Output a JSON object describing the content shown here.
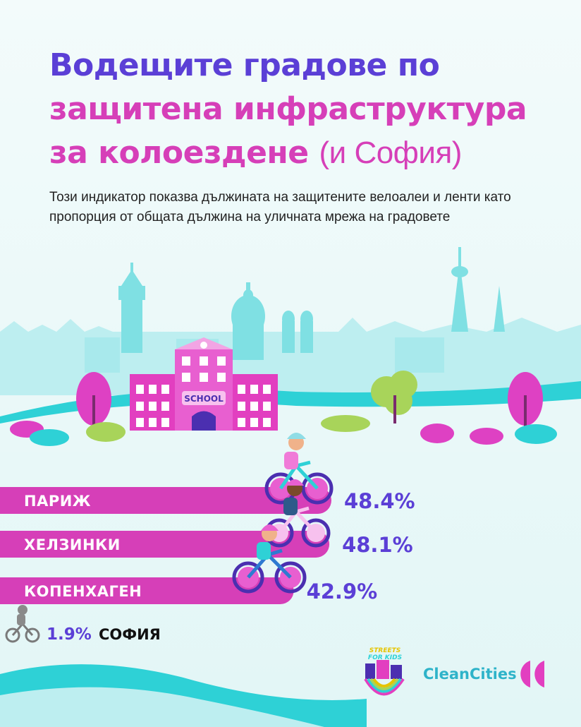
{
  "header": {
    "title_line1": "Водещите градове по",
    "title_line2": "защитена инфраструктура",
    "title_line3": "за колоездене",
    "title_suffix": "(и София)",
    "description": "Този индикатор показва дължината на защитените велоалеи и ленти като пропорция от общата дължина на уличната мрежа на градовете"
  },
  "scene": {
    "school_sign": "SCHOOL"
  },
  "chart_data": {
    "type": "bar",
    "orientation": "horizontal",
    "unit": "%",
    "categories": [
      "ПАРИЖ",
      "ХЕЛЗИНКИ",
      "КОПЕНХАГЕН",
      "СОФИЯ"
    ],
    "values": [
      48.4,
      48.1,
      42.9,
      1.9
    ],
    "value_labels": [
      "48.4%",
      "48.1%",
      "42.9%",
      "1.9%"
    ],
    "colors": {
      "bar": "#d63fb8",
      "value": "#5b3fd6",
      "label": "#ffffff"
    }
  },
  "logos": {
    "streets_for_kids_line1": "STREETS",
    "streets_for_kids_line2": "FOR KIDS",
    "clean_cities": "CleanCities"
  },
  "colors": {
    "purple": "#5b3fd6",
    "magenta": "#d63fb8",
    "teal": "#2ed1d6",
    "sky": "#e9f8f8"
  }
}
